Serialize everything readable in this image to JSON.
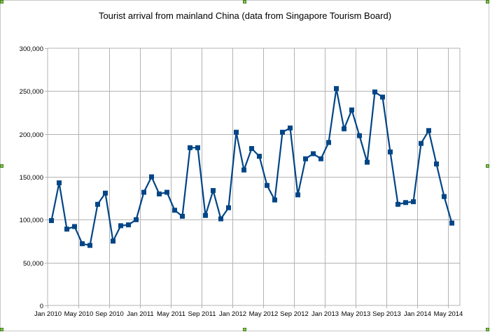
{
  "chart_data": {
    "type": "line",
    "title": "Tourist arrival from mainland China (data from Singapore Tourism Board)",
    "xlabel": "",
    "ylabel": "",
    "ylim": [
      0,
      300000
    ],
    "yticks": [
      "0",
      "50,000",
      "100,000",
      "150,000",
      "200,000",
      "250,000",
      "300,000"
    ],
    "xticks": [
      "Jan 2010",
      "May 2010",
      "Sep 2010",
      "Jan 2011",
      "May 2011",
      "Sep 2011",
      "Jan 2012",
      "May 2012",
      "Sep 2012",
      "Jan 2013",
      "May 2013",
      "Sep 2013",
      "Jan 2014",
      "May 2014"
    ],
    "grid": true,
    "legend": "none",
    "series_color": "#004586",
    "x": [
      "Jan 2010",
      "Feb 2010",
      "Mar 2010",
      "Apr 2010",
      "May 2010",
      "Jun 2010",
      "Jul 2010",
      "Aug 2010",
      "Sep 2010",
      "Oct 2010",
      "Nov 2010",
      "Dec 2010",
      "Jan 2011",
      "Feb 2011",
      "Mar 2011",
      "Apr 2011",
      "May 2011",
      "Jun 2011",
      "Jul 2011",
      "Aug 2011",
      "Sep 2011",
      "Oct 2011",
      "Nov 2011",
      "Dec 2011",
      "Jan 2012",
      "Feb 2012",
      "Mar 2012",
      "Apr 2012",
      "May 2012",
      "Jun 2012",
      "Jul 2012",
      "Aug 2012",
      "Sep 2012",
      "Oct 2012",
      "Nov 2012",
      "Dec 2012",
      "Jan 2013",
      "Feb 2013",
      "Mar 2013",
      "Apr 2013",
      "May 2013",
      "Jun 2013",
      "Jul 2013",
      "Aug 2013",
      "Sep 2013",
      "Oct 2013",
      "Nov 2013",
      "Dec 2013",
      "Jan 2014",
      "Feb 2014",
      "Mar 2014",
      "Apr 2014",
      "May 2014"
    ],
    "values": [
      99000,
      143000,
      89000,
      92000,
      72000,
      70000,
      118000,
      131000,
      75000,
      93000,
      94000,
      100000,
      132000,
      150000,
      130000,
      132000,
      111000,
      104000,
      184000,
      184000,
      105000,
      134000,
      101000,
      114000,
      202000,
      158000,
      183000,
      174000,
      140000,
      123000,
      202000,
      207000,
      129000,
      171000,
      177000,
      171000,
      190000,
      253000,
      206000,
      228000,
      198000,
      167000,
      249000,
      243000,
      179000,
      118000,
      120000,
      121000,
      189000,
      204000,
      165000,
      127000,
      96000
    ]
  }
}
